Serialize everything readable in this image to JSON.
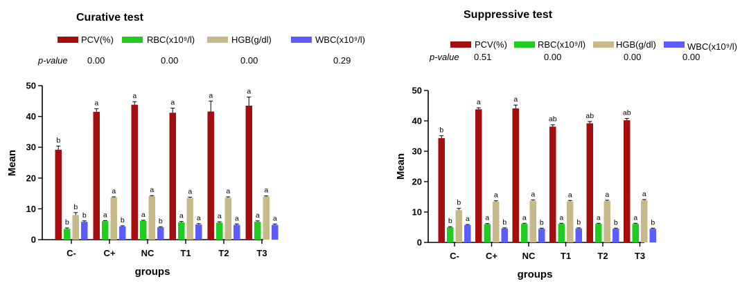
{
  "chart_data": [
    {
      "type": "bar",
      "title": "Curative test",
      "xlabel": "groups",
      "ylabel": "Mean",
      "ylim": [
        0,
        50
      ],
      "yticks": [
        "0",
        "10",
        "20",
        "30",
        "40",
        "50"
      ],
      "categories": [
        "C-",
        "C+",
        "NC",
        "T1",
        "T2",
        "T3"
      ],
      "legend": [
        "PCV(%)",
        "RBC(x10⁹/l)",
        "HGB(g/dl)",
        "WBC(x10⁹/l)"
      ],
      "pvalue_label": "p-value",
      "pvalues": [
        "0.00",
        "0.00",
        "0.00",
        "0.29"
      ],
      "colors": [
        "#a50e0e",
        "#1fcc1f",
        "#c7b98a",
        "#5c5cff"
      ],
      "series": [
        {
          "name": "PCV(%)",
          "values": [
            29.2,
            41.5,
            43.8,
            41.2,
            41.6,
            43.5
          ],
          "errors": [
            1.2,
            1.0,
            1.0,
            1.5,
            3.4,
            2.8
          ],
          "letters": [
            "b",
            "a",
            "a",
            "a",
            "a",
            "a"
          ]
        },
        {
          "name": "RBC(x10⁹/l)",
          "values": [
            3.5,
            6.0,
            6.1,
            5.6,
            5.5,
            5.8
          ],
          "errors": [
            0.3,
            0.2,
            0.2,
            0.3,
            0.3,
            0.3
          ],
          "letters": [
            "b",
            "a",
            "a",
            "a",
            "a",
            "a"
          ]
        },
        {
          "name": "HGB(g/dl)",
          "values": [
            8.0,
            13.7,
            14.1,
            13.5,
            13.6,
            14.0
          ],
          "errors": [
            0.8,
            0.2,
            0.2,
            0.3,
            0.3,
            0.2
          ],
          "letters": [
            "b",
            "a",
            "a",
            "a",
            "a",
            "a"
          ]
        },
        {
          "name": "WBC(x10⁹/l)",
          "values": [
            5.8,
            4.3,
            4.0,
            4.9,
            4.8,
            4.8
          ],
          "errors": [
            0.3,
            0.2,
            0.2,
            0.3,
            0.3,
            0.3
          ],
          "letters": [
            "b",
            "b",
            "b",
            "a",
            "a",
            "a"
          ]
        }
      ]
    },
    {
      "type": "bar",
      "title": "Suppressive test",
      "xlabel": "groups",
      "ylabel": "Mean",
      "ylim": [
        0,
        50
      ],
      "yticks": [
        "0",
        "10",
        "20",
        "30",
        "40",
        "50"
      ],
      "categories": [
        "C-",
        "C+",
        "NC",
        "T1",
        "T2",
        "T3"
      ],
      "legend": [
        "PCV(%)",
        "RBC(x10⁹/l)",
        "HGB(g/dl)",
        "WBC(x10⁹/l)"
      ],
      "pvalue_label": "p-value",
      "pvalues": [
        "0.51",
        "0.00",
        "0.00",
        "0.00"
      ],
      "colors": [
        "#a50e0e",
        "#1fcc1f",
        "#c7b98a",
        "#5c5cff"
      ],
      "series": [
        {
          "name": "PCV(%)",
          "values": [
            34.3,
            43.8,
            44.1,
            38.1,
            39.2,
            40.2
          ],
          "errors": [
            0.8,
            0.5,
            1.1,
            0.6,
            0.6,
            0.6
          ],
          "letters": [
            "b",
            "a",
            "a",
            "ab",
            "ab",
            "ab"
          ]
        },
        {
          "name": "RBC(x10⁹/l)",
          "values": [
            5.0,
            6.0,
            6.1,
            6.1,
            6.1,
            6.1
          ],
          "errors": [
            0.2,
            0.2,
            0.2,
            0.2,
            0.2,
            0.2
          ],
          "letters": [
            "b",
            "a",
            "a",
            "a",
            "a",
            "a"
          ]
        },
        {
          "name": "HGB(g/dl)",
          "values": [
            10.6,
            13.4,
            13.7,
            13.5,
            13.6,
            13.8
          ],
          "errors": [
            0.6,
            0.3,
            0.3,
            0.3,
            0.3,
            0.3
          ],
          "letters": [
            "b",
            "a",
            "a",
            "a",
            "a",
            "a"
          ]
        },
        {
          "name": "WBC(x10⁹/l)",
          "values": [
            5.7,
            4.6,
            4.5,
            4.6,
            4.5,
            4.5
          ],
          "errors": [
            0.2,
            0.2,
            0.2,
            0.2,
            0.2,
            0.2
          ],
          "letters": [
            "a",
            "b",
            "b",
            "b",
            "b",
            "b"
          ]
        }
      ]
    }
  ]
}
